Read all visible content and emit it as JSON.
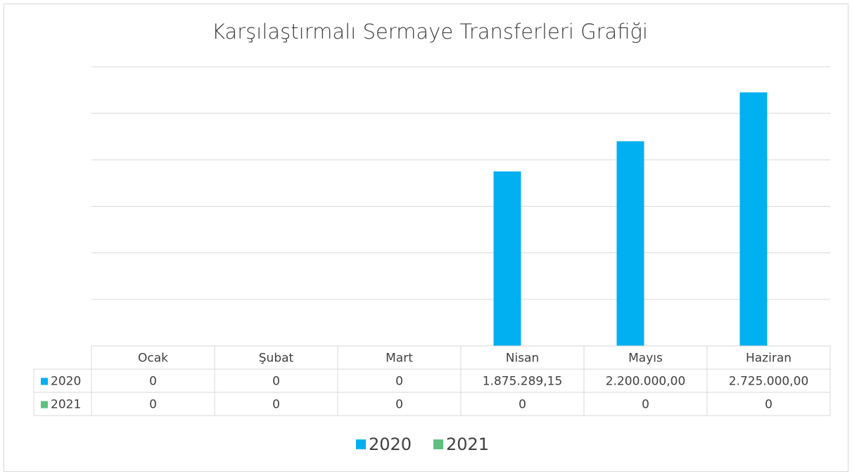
{
  "chart_data": {
    "type": "bar",
    "title": "Karşılaştırmalı Sermaye Transferleri Grafiği",
    "categories": [
      "Ocak",
      "Şubat",
      "Mart",
      "Nisan",
      "Mayıs",
      "Haziran"
    ],
    "series": [
      {
        "name": "2020",
        "color": "#00b0f0",
        "values": [
          0,
          0,
          0,
          1875289.15,
          2200000,
          2725000
        ],
        "value_labels": [
          "0",
          "0",
          "0",
          "1.875.289,15",
          "2.200.000,00",
          "2.725.000,00"
        ]
      },
      {
        "name": "2021",
        "color": "#5fc080",
        "values": [
          0,
          0,
          0,
          0,
          0,
          0
        ]
      }
    ],
    "ylim": [
      0,
      3000000
    ],
    "yticks": [
      0,
      500000,
      1000000,
      1500000,
      2000000,
      2500000,
      3000000
    ],
    "grid": true,
    "legend": "bottom"
  }
}
